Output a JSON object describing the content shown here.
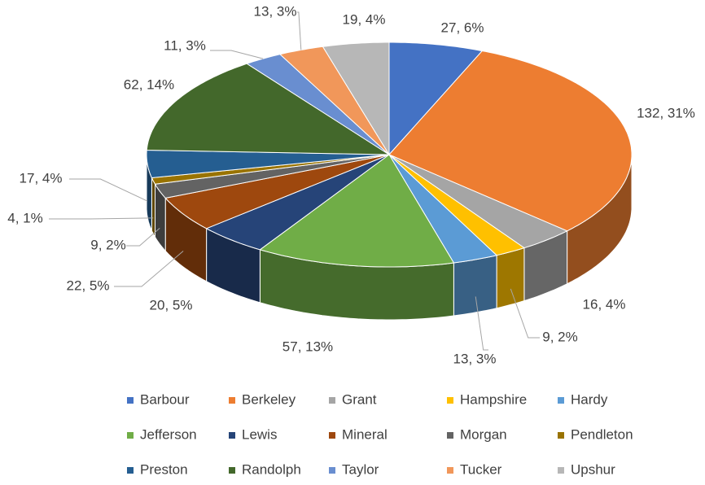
{
  "chart_data": {
    "type": "pie",
    "three_d": true,
    "categories": [
      "Barbour",
      "Berkeley",
      "Grant",
      "Hampshire",
      "Hardy",
      "Jefferson",
      "Lewis",
      "Mineral",
      "Morgan",
      "Pendleton",
      "Preston",
      "Randolph",
      "Taylor",
      "Tucker",
      "Upshur"
    ],
    "values": [
      27,
      132,
      16,
      9,
      13,
      57,
      20,
      22,
      9,
      4,
      17,
      62,
      11,
      13,
      19
    ],
    "value_labels": [
      "27, 6%",
      "132, 31%",
      "16, 4%",
      "9, 2%",
      "13, 3%",
      "57, 13%",
      "20, 5%",
      "22, 5%",
      "9, 2%",
      "4, 1%",
      "17, 4%",
      "62, 14%",
      "11, 3%",
      "13, 3%",
      "19, 4%"
    ],
    "colors": [
      "#4472c4",
      "#ed7d31",
      "#a5a5a5",
      "#ffc000",
      "#5b9bd5",
      "#70ad47",
      "#264478",
      "#9e480e",
      "#636363",
      "#997300",
      "#255e91",
      "#43682b",
      "#698ed0",
      "#f1975a",
      "#b7b7b7"
    ],
    "legend": "bottom"
  }
}
